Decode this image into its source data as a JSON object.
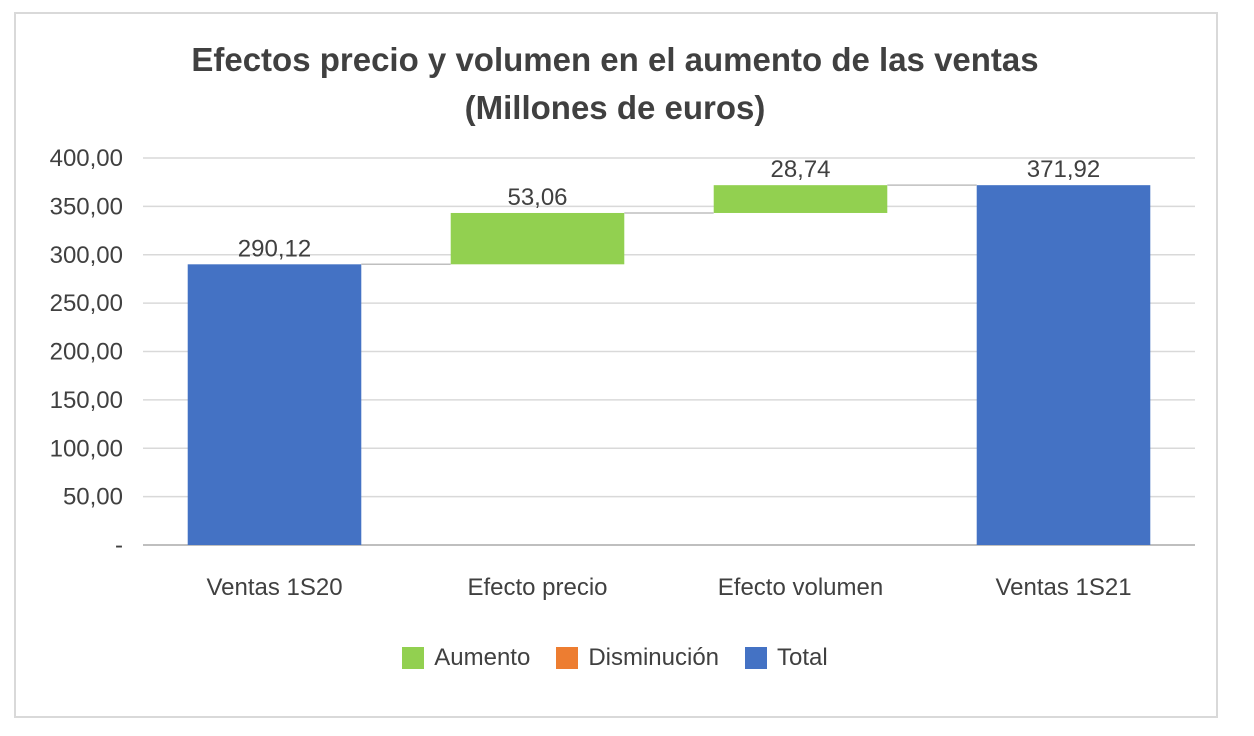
{
  "chart_data": {
    "type": "bar",
    "subtype": "waterfall",
    "title": "Efectos precio y volumen en el aumento de las ventas",
    "subtitle": "(Millones de euros)",
    "categories": [
      "Ventas 1S20",
      "Efecto precio",
      "Efecto volumen",
      "Ventas 1S21"
    ],
    "bars": [
      {
        "category": "Ventas 1S20",
        "kind": "Total",
        "base": 0,
        "value": 290.12,
        "label": "290,12"
      },
      {
        "category": "Efecto precio",
        "kind": "Aumento",
        "base": 290.12,
        "value": 53.06,
        "label": "53,06"
      },
      {
        "category": "Efecto volumen",
        "kind": "Aumento",
        "base": 343.18,
        "value": 28.74,
        "label": "28,74"
      },
      {
        "category": "Ventas 1S21",
        "kind": "Total",
        "base": 0,
        "value": 371.92,
        "label": "371,92"
      }
    ],
    "ylim": [
      0,
      400
    ],
    "yticks": [
      0,
      50,
      100,
      150,
      200,
      250,
      300,
      350,
      400
    ],
    "ytick_labels": [
      "-",
      "50,00",
      "100,00",
      "150,00",
      "200,00",
      "250,00",
      "300,00",
      "350,00",
      "400,00"
    ],
    "grid": true,
    "legend": [
      {
        "name": "Aumento",
        "color": "#92d050"
      },
      {
        "name": "Disminución",
        "color": "#ed7d31"
      },
      {
        "name": "Total",
        "color": "#4472c4"
      }
    ],
    "legend_position": "bottom",
    "colors": {
      "Aumento": "#92d050",
      "Disminución": "#ed7d31",
      "Total": "#4472c4"
    }
  }
}
